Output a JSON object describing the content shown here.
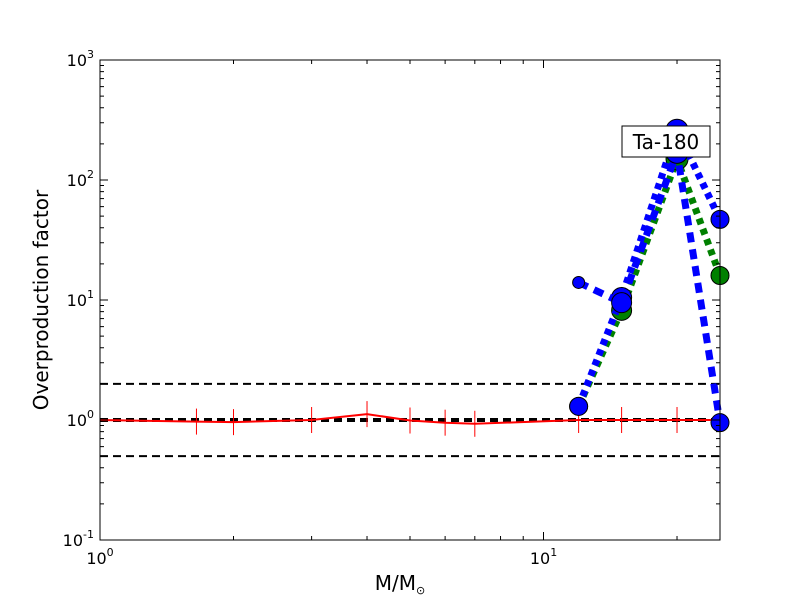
{
  "chart_data": {
    "type": "line",
    "xlabel": "M/M",
    "xlabel_sub": "⊙",
    "ylabel": "Overproduction factor",
    "xscale": "log",
    "yscale": "log",
    "xlim": [
      1,
      25
    ],
    "ylim": [
      0.1,
      1000
    ],
    "x_ticks": [
      {
        "base": "10",
        "exp": "0",
        "value": 1
      },
      {
        "base": "10",
        "exp": "1",
        "value": 10
      }
    ],
    "y_ticks": [
      {
        "base": "10",
        "exp": "-1",
        "value": 0.1
      },
      {
        "base": "10",
        "exp": "0",
        "value": 1
      },
      {
        "base": "10",
        "exp": "1",
        "value": 10
      },
      {
        "base": "10",
        "exp": "2",
        "value": 100
      },
      {
        "base": "10",
        "exp": "3",
        "value": 1000
      }
    ],
    "annotation": "Ta-180",
    "reference_lines": [
      {
        "y": 2,
        "color": "#000000",
        "style": "dashed"
      },
      {
        "y": 1,
        "color": "#000000",
        "style": "dashed"
      },
      {
        "y": 0.5,
        "color": "#000000",
        "style": "dashed"
      }
    ],
    "series": [
      {
        "color": "#ff0000",
        "style": "solid-with-markers",
        "x": [
          1,
          1.65,
          2,
          3,
          4,
          5,
          6,
          7,
          12,
          15,
          20,
          25
        ],
        "y": [
          1.0,
          0.97,
          0.96,
          1.0,
          1.12,
          0.99,
          0.95,
          0.93,
          1.0,
          1.0,
          1.0,
          1.0
        ]
      },
      {
        "color": "#008000",
        "style": "dotted",
        "x": [
          12,
          15,
          20,
          25
        ],
        "y": [
          1.3,
          8.2,
          150,
          16
        ]
      },
      {
        "color": "#0000ff",
        "style": "dotted",
        "x": [
          12,
          15,
          20,
          25
        ],
        "y": [
          1.3,
          10.5,
          260,
          47
        ]
      },
      {
        "color": "#0000ff",
        "style": "dashed",
        "x": [
          12,
          15,
          20,
          25
        ],
        "y": [
          14,
          9.5,
          170,
          0.95
        ]
      }
    ]
  }
}
